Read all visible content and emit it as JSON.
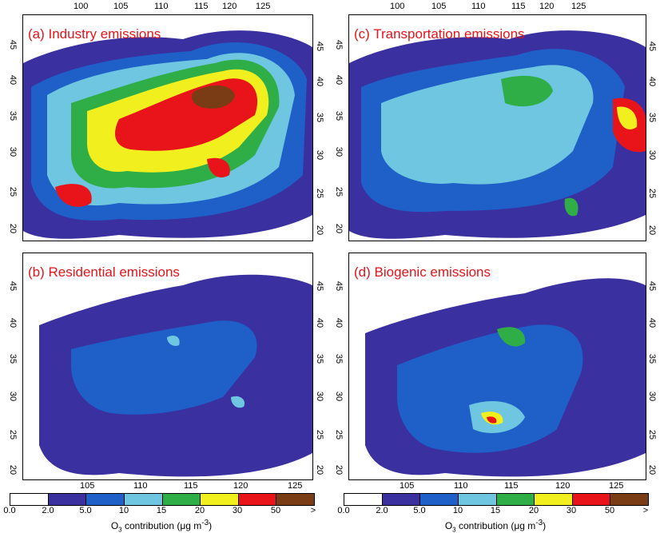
{
  "panels": [
    {
      "id": "a",
      "label": "(a) Industry emissions",
      "intensity": 1.0
    },
    {
      "id": "c",
      "label": "(c) Transportation emissions",
      "intensity": 0.55
    },
    {
      "id": "b",
      "label": "(b) Residential emissions",
      "intensity": 0.2
    },
    {
      "id": "d",
      "label": "(d) Biogenic emissions",
      "intensity": 0.35
    }
  ],
  "top_lon_ticks": [
    "100",
    "105",
    "110",
    "115",
    "120",
    "125"
  ],
  "bottom_lon_ticks": [
    "105",
    "110",
    "115",
    "120",
    "125"
  ],
  "lat_ticks": [
    "45",
    "40",
    "35",
    "30",
    "25",
    "20"
  ],
  "colorbar": {
    "labels": [
      "0.0",
      "2.0",
      "5.0",
      "10",
      "15",
      "20",
      "30",
      "50",
      ">"
    ],
    "colors": [
      "#ffffff",
      "#3b30a0",
      "#1f5fc8",
      "#6ec6e0",
      "#2fae48",
      "#f2ef1e",
      "#e8141a",
      "#7a3c14"
    ],
    "title_pre": "O",
    "title_sub": "3",
    "title_post": " contribution (μg m",
    "title_sup": "-3",
    "title_end": ")"
  }
}
